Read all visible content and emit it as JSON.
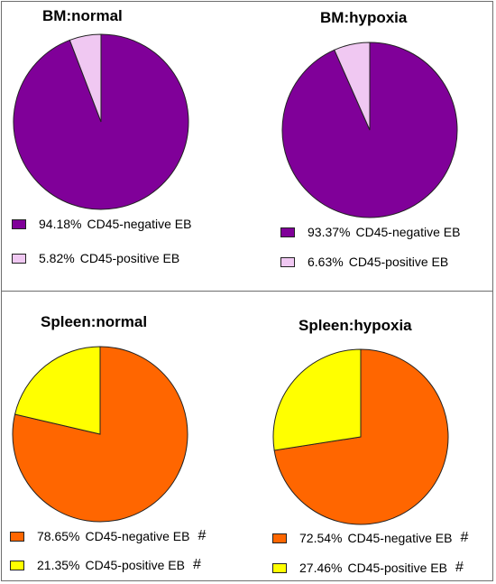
{
  "chart_data": [
    {
      "type": "pie",
      "title": "BM:normal",
      "slices": [
        {
          "label": "CD45-negative EB",
          "percent_text": "94.18%",
          "value": 94.18,
          "color": "#800099",
          "mark": ""
        },
        {
          "label": "CD45-positive EB",
          "percent_text": "5.82%",
          "value": 5.82,
          "color": "#f0c8f2",
          "mark": ""
        }
      ]
    },
    {
      "type": "pie",
      "title": "BM:hypoxia",
      "slices": [
        {
          "label": "CD45-negative EB",
          "percent_text": "93.37%",
          "value": 93.37,
          "color": "#800099",
          "mark": ""
        },
        {
          "label": "CD45-positive EB",
          "percent_text": "6.63%",
          "value": 6.63,
          "color": "#f0c8f2",
          "mark": ""
        }
      ]
    },
    {
      "type": "pie",
      "title": "Spleen:normal",
      "slices": [
        {
          "label": "CD45-negative EB",
          "percent_text": "78.65%",
          "value": 78.65,
          "color": "#ff6600",
          "mark": "#"
        },
        {
          "label": "CD45-positive EB",
          "percent_text": "21.35%",
          "value": 21.35,
          "color": "#ffff00",
          "mark": "#"
        }
      ]
    },
    {
      "type": "pie",
      "title": "Spleen:hypoxia",
      "slices": [
        {
          "label": "CD45-negative EB",
          "percent_text": "72.54%",
          "value": 72.54,
          "color": "#ff6600",
          "mark": "#"
        },
        {
          "label": "CD45-positive EB",
          "percent_text": "27.46%",
          "value": 27.46,
          "color": "#ffff00",
          "mark": "#"
        }
      ]
    }
  ]
}
